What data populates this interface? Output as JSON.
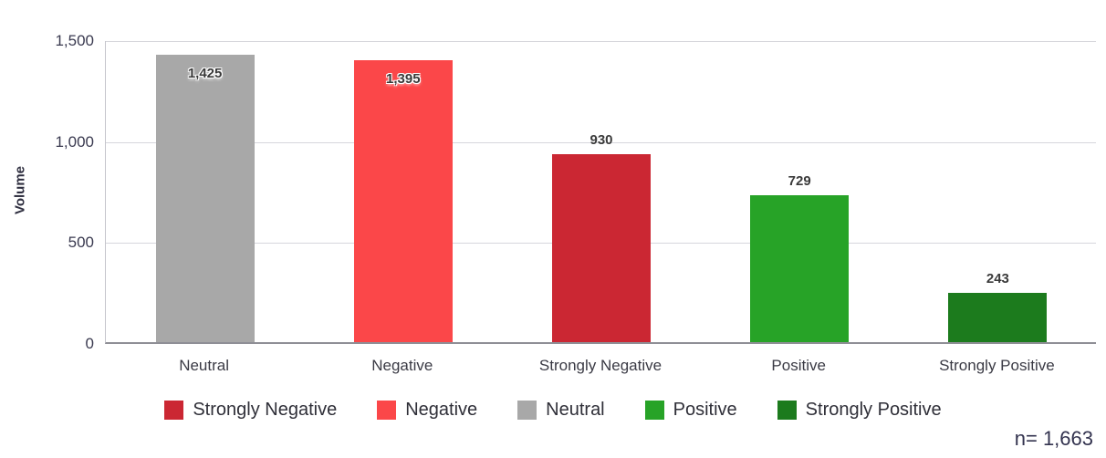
{
  "chart_data": {
    "type": "bar",
    "categories": [
      "Neutral",
      "Negative",
      "Strongly Negative",
      "Positive",
      "Strongly Positive"
    ],
    "values": [
      1425,
      1395,
      930,
      729,
      243
    ],
    "value_labels": [
      "1,425",
      "1,395",
      "930",
      "729",
      "243"
    ],
    "label_placement": [
      "inside",
      "inside",
      "above",
      "above",
      "above"
    ],
    "bar_colors": [
      "#a8a8a8",
      "#fb4749",
      "#cb2733",
      "#27a327",
      "#1c7b1d"
    ],
    "title": "",
    "xlabel": "",
    "ylabel": "Volume",
    "ylim": [
      0,
      1500
    ],
    "yticks": [
      0,
      500,
      1000,
      1500
    ],
    "ytick_labels": [
      "0",
      "500",
      "1,000",
      "1,500"
    ],
    "grid": true,
    "legend_position": "bottom"
  },
  "legend": {
    "items": [
      {
        "label": "Strongly Negative",
        "color": "#cb2733"
      },
      {
        "label": "Negative",
        "color": "#fb4749"
      },
      {
        "label": "Neutral",
        "color": "#a8a8a8"
      },
      {
        "label": "Positive",
        "color": "#27a327"
      },
      {
        "label": "Strongly Positive",
        "color": "#1c7b1d"
      }
    ]
  },
  "footnote": {
    "sample_size": "n= 1,663"
  }
}
